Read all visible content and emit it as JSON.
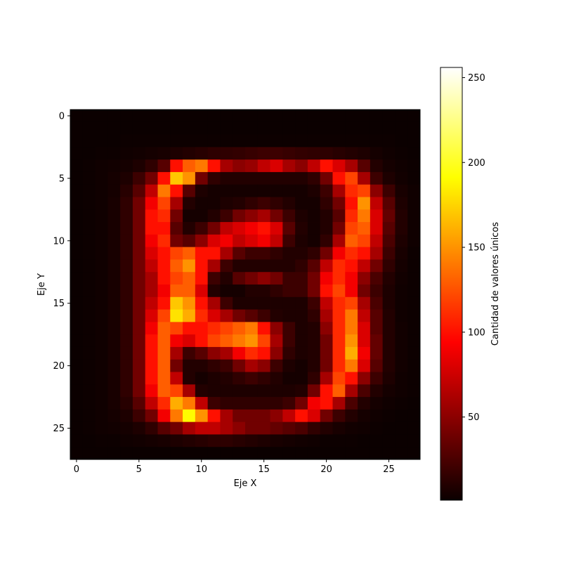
{
  "chart_data": {
    "type": "heatmap",
    "title": "",
    "xlabel": "Eje X",
    "ylabel": "Eje Y",
    "x_ticks": [
      0,
      5,
      10,
      15,
      20,
      25
    ],
    "y_ticks": [
      0,
      5,
      10,
      15,
      20,
      25
    ],
    "xlim": [
      -0.5,
      27.5
    ],
    "ylim": [
      27.5,
      -0.5
    ],
    "colormap": "hot",
    "colorbar": {
      "label": "Cantidad de valores únicos",
      "ticks": [
        50,
        100,
        150,
        200,
        250
      ],
      "min": 1,
      "max": 256
    },
    "values": [
      [
        1,
        1,
        1,
        1,
        1,
        1,
        1,
        1,
        1,
        1,
        1,
        1,
        1,
        1,
        1,
        1,
        1,
        1,
        1,
        1,
        1,
        1,
        1,
        1,
        1,
        1,
        1,
        1
      ],
      [
        1,
        1,
        1,
        1,
        1,
        1,
        1,
        1,
        1,
        1,
        1,
        1,
        1,
        1,
        1,
        1,
        1,
        1,
        1,
        1,
        1,
        1,
        1,
        1,
        1,
        1,
        1,
        1
      ],
      [
        1,
        1,
        1,
        1,
        2,
        2,
        2,
        2,
        2,
        2,
        2,
        2,
        2,
        2,
        2,
        2,
        2,
        2,
        2,
        2,
        2,
        2,
        2,
        2,
        2,
        2,
        1,
        1
      ],
      [
        1,
        1,
        2,
        2,
        3,
        4,
        5,
        6,
        8,
        10,
        12,
        14,
        15,
        16,
        18,
        20,
        20,
        18,
        16,
        15,
        14,
        12,
        10,
        8,
        5,
        3,
        2,
        1
      ],
      [
        1,
        2,
        3,
        4,
        5,
        8,
        15,
        30,
        100,
        130,
        140,
        100,
        60,
        50,
        55,
        70,
        80,
        60,
        50,
        70,
        100,
        80,
        60,
        30,
        10,
        5,
        3,
        2
      ],
      [
        1,
        2,
        3,
        5,
        8,
        20,
        40,
        100,
        170,
        150,
        40,
        15,
        10,
        10,
        10,
        10,
        10,
        10,
        10,
        15,
        40,
        100,
        120,
        60,
        20,
        8,
        4,
        2
      ],
      [
        1,
        2,
        3,
        5,
        12,
        30,
        70,
        140,
        100,
        30,
        8,
        5,
        5,
        5,
        5,
        5,
        5,
        5,
        5,
        8,
        20,
        60,
        110,
        120,
        50,
        20,
        6,
        3
      ],
      [
        1,
        2,
        3,
        6,
        15,
        40,
        90,
        120,
        60,
        10,
        5,
        5,
        8,
        10,
        15,
        20,
        15,
        10,
        5,
        5,
        15,
        40,
        100,
        150,
        70,
        30,
        8,
        3
      ],
      [
        1,
        2,
        3,
        6,
        15,
        40,
        100,
        110,
        40,
        5,
        5,
        10,
        20,
        40,
        50,
        60,
        40,
        20,
        8,
        5,
        10,
        30,
        110,
        140,
        80,
        35,
        10,
        3
      ],
      [
        1,
        2,
        3,
        6,
        15,
        40,
        100,
        100,
        30,
        10,
        20,
        40,
        70,
        80,
        90,
        100,
        80,
        30,
        10,
        5,
        10,
        40,
        120,
        130,
        80,
        30,
        10,
        3
      ],
      [
        1,
        2,
        3,
        6,
        15,
        40,
        90,
        110,
        40,
        30,
        50,
        80,
        90,
        70,
        80,
        90,
        70,
        20,
        8,
        5,
        15,
        60,
        130,
        120,
        70,
        25,
        8,
        3
      ],
      [
        1,
        2,
        3,
        6,
        15,
        40,
        80,
        100,
        120,
        130,
        100,
        100,
        60,
        30,
        20,
        20,
        15,
        10,
        10,
        15,
        40,
        90,
        110,
        100,
        60,
        20,
        6,
        2
      ],
      [
        1,
        2,
        3,
        6,
        15,
        40,
        70,
        100,
        130,
        150,
        100,
        60,
        20,
        10,
        10,
        10,
        10,
        10,
        15,
        30,
        70,
        110,
        100,
        70,
        40,
        15,
        5,
        2
      ],
      [
        1,
        2,
        3,
        6,
        15,
        40,
        60,
        100,
        120,
        130,
        100,
        20,
        10,
        30,
        40,
        50,
        40,
        20,
        20,
        40,
        90,
        110,
        90,
        50,
        25,
        10,
        4,
        2
      ],
      [
        1,
        2,
        3,
        6,
        15,
        40,
        60,
        90,
        130,
        130,
        80,
        10,
        5,
        5,
        10,
        10,
        15,
        20,
        20,
        40,
        100,
        120,
        90,
        40,
        20,
        8,
        3,
        2
      ],
      [
        1,
        2,
        3,
        6,
        15,
        40,
        70,
        100,
        170,
        150,
        100,
        60,
        20,
        8,
        8,
        8,
        8,
        8,
        8,
        20,
        70,
        110,
        120,
        60,
        25,
        8,
        3,
        2
      ],
      [
        1,
        2,
        3,
        6,
        15,
        40,
        80,
        120,
        180,
        160,
        110,
        80,
        60,
        40,
        30,
        20,
        10,
        8,
        8,
        15,
        60,
        110,
        140,
        70,
        30,
        10,
        3,
        2
      ],
      [
        1,
        2,
        3,
        6,
        15,
        40,
        90,
        130,
        120,
        100,
        100,
        110,
        120,
        130,
        140,
        100,
        50,
        20,
        8,
        10,
        50,
        110,
        140,
        80,
        30,
        10,
        4,
        2
      ],
      [
        1,
        2,
        3,
        6,
        15,
        40,
        100,
        130,
        90,
        80,
        100,
        120,
        130,
        140,
        150,
        120,
        60,
        20,
        8,
        10,
        40,
        110,
        150,
        80,
        35,
        10,
        4,
        2
      ],
      [
        1,
        2,
        3,
        6,
        15,
        40,
        100,
        130,
        60,
        20,
        30,
        50,
        60,
        90,
        110,
        100,
        50,
        15,
        8,
        10,
        40,
        110,
        160,
        90,
        35,
        10,
        4,
        2
      ],
      [
        1,
        2,
        3,
        6,
        15,
        40,
        100,
        130,
        40,
        10,
        10,
        15,
        20,
        40,
        60,
        50,
        20,
        8,
        5,
        10,
        40,
        110,
        140,
        80,
        30,
        10,
        4,
        2
      ],
      [
        1,
        2,
        3,
        6,
        15,
        40,
        100,
        130,
        70,
        10,
        5,
        8,
        10,
        15,
        20,
        15,
        10,
        5,
        5,
        15,
        60,
        120,
        100,
        50,
        20,
        8,
        3,
        2
      ],
      [
        1,
        2,
        3,
        6,
        15,
        40,
        90,
        130,
        120,
        60,
        10,
        8,
        8,
        8,
        8,
        8,
        8,
        8,
        10,
        40,
        100,
        130,
        60,
        25,
        10,
        5,
        3,
        2
      ],
      [
        1,
        2,
        3,
        6,
        12,
        30,
        70,
        110,
        160,
        140,
        70,
        20,
        15,
        15,
        15,
        15,
        15,
        20,
        40,
        90,
        100,
        60,
        25,
        10,
        5,
        3,
        2,
        1
      ],
      [
        1,
        2,
        3,
        5,
        8,
        20,
        40,
        90,
        140,
        190,
        150,
        100,
        60,
        40,
        40,
        40,
        50,
        70,
        100,
        80,
        40,
        20,
        10,
        5,
        3,
        2,
        1,
        1
      ],
      [
        1,
        2,
        3,
        4,
        5,
        8,
        15,
        30,
        40,
        60,
        70,
        70,
        60,
        50,
        40,
        40,
        35,
        30,
        25,
        15,
        10,
        6,
        4,
        3,
        2,
        1,
        1,
        1
      ],
      [
        1,
        1,
        2,
        2,
        3,
        4,
        5,
        6,
        8,
        10,
        12,
        14,
        14,
        12,
        10,
        8,
        6,
        5,
        4,
        3,
        2,
        2,
        2,
        1,
        1,
        1,
        1,
        1
      ],
      [
        1,
        1,
        1,
        1,
        1,
        1,
        1,
        1,
        1,
        1,
        1,
        1,
        1,
        1,
        1,
        1,
        1,
        1,
        1,
        1,
        1,
        1,
        1,
        1,
        1,
        1,
        1,
        1
      ]
    ]
  }
}
